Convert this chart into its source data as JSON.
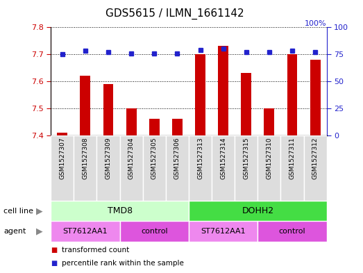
{
  "title": "GDS5615 / ILMN_1661142",
  "samples": [
    "GSM1527307",
    "GSM1527308",
    "GSM1527309",
    "GSM1527304",
    "GSM1527305",
    "GSM1527306",
    "GSM1527313",
    "GSM1527314",
    "GSM1527315",
    "GSM1527310",
    "GSM1527311",
    "GSM1527312"
  ],
  "transformed_count": [
    7.41,
    7.62,
    7.59,
    7.5,
    7.46,
    7.46,
    7.7,
    7.73,
    7.63,
    7.5,
    7.7,
    7.68
  ],
  "percentile_rank": [
    75,
    78,
    77,
    76,
    76,
    76,
    79,
    80,
    77,
    77,
    78,
    77
  ],
  "ylim_left": [
    7.4,
    7.8
  ],
  "ylim_right": [
    0,
    100
  ],
  "yticks_left": [
    7.4,
    7.5,
    7.6,
    7.7,
    7.8
  ],
  "yticks_right": [
    0,
    25,
    50,
    75,
    100
  ],
  "bar_color": "#cc0000",
  "dot_color": "#2222cc",
  "cell_line_groups": [
    {
      "label": "TMD8",
      "start": 0,
      "end": 6,
      "color": "#ccffcc"
    },
    {
      "label": "DOHH2",
      "start": 6,
      "end": 12,
      "color": "#44dd44"
    }
  ],
  "agent_groups": [
    {
      "label": "ST7612AA1",
      "start": 0,
      "end": 3,
      "color": "#ee88ee"
    },
    {
      "label": "control",
      "start": 3,
      "end": 6,
      "color": "#dd55dd"
    },
    {
      "label": "ST7612AA1",
      "start": 6,
      "end": 9,
      "color": "#ee88ee"
    },
    {
      "label": "control",
      "start": 9,
      "end": 12,
      "color": "#dd55dd"
    }
  ],
  "legend_items": [
    {
      "label": "transformed count",
      "color": "#cc0000"
    },
    {
      "label": "percentile rank within the sample",
      "color": "#2222cc"
    }
  ],
  "cell_line_label": "cell line",
  "agent_label": "agent",
  "bar_width": 0.45,
  "background_color": "#ffffff",
  "grid_color": "#000000",
  "tick_color_left": "#cc0000",
  "tick_color_right": "#2222cc",
  "sample_box_color": "#dddddd",
  "title_fontsize": 11,
  "label_fontsize": 8,
  "sample_fontsize": 6.5,
  "group_fontsize": 9
}
